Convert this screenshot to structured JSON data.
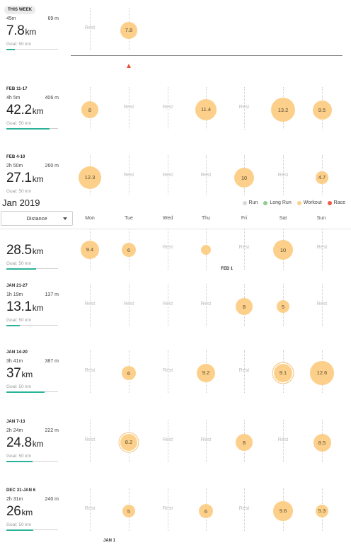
{
  "header": {
    "month_title": "Jan 2019",
    "metric_select": "Distance",
    "legend": [
      {
        "label": "Run",
        "color": "#d9d9d9"
      },
      {
        "label": "Long Run",
        "color": "#8dcf8f"
      },
      {
        "label": "Workout",
        "color": "#fcd08b"
      },
      {
        "label": "Race",
        "color": "#ef5b4b"
      }
    ],
    "day_names": [
      "Mon",
      "Tue",
      "Wed",
      "Thu",
      "Fri",
      "Sat",
      "Sun"
    ]
  },
  "rest_label": "Rest",
  "date_markers": [
    "FEB 1",
    "JAN 1"
  ],
  "weeks": [
    {
      "label": "THIS WEEK",
      "time": "45m",
      "elevation": "69 m",
      "distance": "7.8",
      "unit": "km",
      "goal": "Goal: 50 km",
      "goal_progress": 0.16,
      "days": [
        null,
        7.8
      ]
    },
    {
      "label": "FEB 11-17",
      "time": "4h 5m",
      "elevation": "406 m",
      "distance": "42.2",
      "unit": "km",
      "goal": "Goal: 50 km",
      "goal_progress": 0.84,
      "days": [
        8,
        null,
        null,
        11.4,
        null,
        13.2,
        9.5
      ]
    },
    {
      "label": "FEB 4-10",
      "time": "2h 50m",
      "elevation": "260 m",
      "distance": "27.1",
      "unit": "km",
      "goal": "Goal: 50 km",
      "goal_progress": 0.54,
      "days": [
        12.3,
        null,
        null,
        null,
        10,
        null,
        4.7
      ]
    },
    {
      "label": "",
      "time": "",
      "elevation": "",
      "distance": "28.5",
      "unit": "km",
      "goal": "Goal: 50 km",
      "goal_progress": 0.57,
      "days": [
        9.4,
        6,
        null,
        3,
        null,
        10,
        null
      ]
    },
    {
      "label": "JAN 21-27",
      "time": "1h 19m",
      "elevation": "137 m",
      "distance": "13.1",
      "unit": "km",
      "goal": "Goal: 50 km",
      "goal_progress": 0.26,
      "days": [
        null,
        null,
        null,
        null,
        8,
        5,
        null
      ]
    },
    {
      "label": "JAN 14-20",
      "time": "3h 41m",
      "elevation": "387 m",
      "distance": "37",
      "unit": "km",
      "goal": "Goal: 50 km",
      "goal_progress": 0.74,
      "days": [
        null,
        6,
        null,
        9.2,
        null,
        9.1,
        12.6
      ]
    },
    {
      "label": "JAN 7-13",
      "time": "2h 24m",
      "elevation": "222 m",
      "distance": "24.8",
      "unit": "km",
      "goal": "Goal: 50 km",
      "goal_progress": 0.5,
      "days": [
        null,
        8.2,
        null,
        null,
        8,
        null,
        8.5
      ]
    },
    {
      "label": "DEC 31-JAN 6",
      "time": "2h 31m",
      "elevation": "240 m",
      "distance": "26",
      "unit": "km",
      "goal": "Goal: 50 km",
      "goal_progress": 0.52,
      "days": [
        null,
        5,
        null,
        6,
        null,
        9.6,
        5.3
      ]
    }
  ]
}
